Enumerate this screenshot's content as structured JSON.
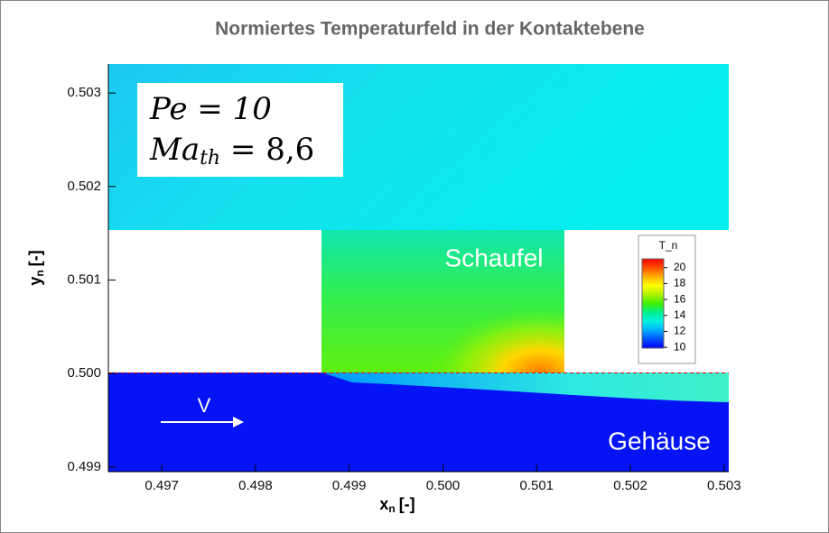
{
  "chart_data": {
    "type": "contour",
    "title": "Normiertes Temperaturfeld in der Kontaktebene",
    "xlabel": {
      "base": "x",
      "sub": "n",
      "unit": "[-]"
    },
    "ylabel": {
      "base": "y",
      "sub": "n",
      "unit": "[-]"
    },
    "xlim": [
      0.49643,
      0.50305
    ],
    "ylim": [
      0.49895,
      0.50331
    ],
    "xticks": [
      0.497,
      0.498,
      0.499,
      {
        "value": 0.5,
        "label": "0.500"
      },
      0.501,
      0.502,
      0.503
    ],
    "yticks": [
      0.499,
      {
        "value": 0.5,
        "label": "0.500"
      },
      0.501,
      0.502,
      0.503
    ],
    "annotations": {
      "peclet": "Pe = 10",
      "mach": {
        "base": "Ma",
        "sub": "th",
        "rest": " = 8,6"
      },
      "blade": "Schaufel",
      "housing": "Gehäuse",
      "velocity": "V"
    },
    "colorbar": {
      "title": "T_n",
      "clim": [
        9.9,
        21.1
      ],
      "ticks": [
        10,
        12,
        14,
        16,
        18,
        20
      ],
      "colors": [
        "#0000ff",
        "#0050ff",
        "#00b0ff",
        "#00f0e0",
        "#00f090",
        "#40f000",
        "#b0f000",
        "#ffff00",
        "#ffb000",
        "#ff5000",
        "#ff0000"
      ]
    }
  }
}
